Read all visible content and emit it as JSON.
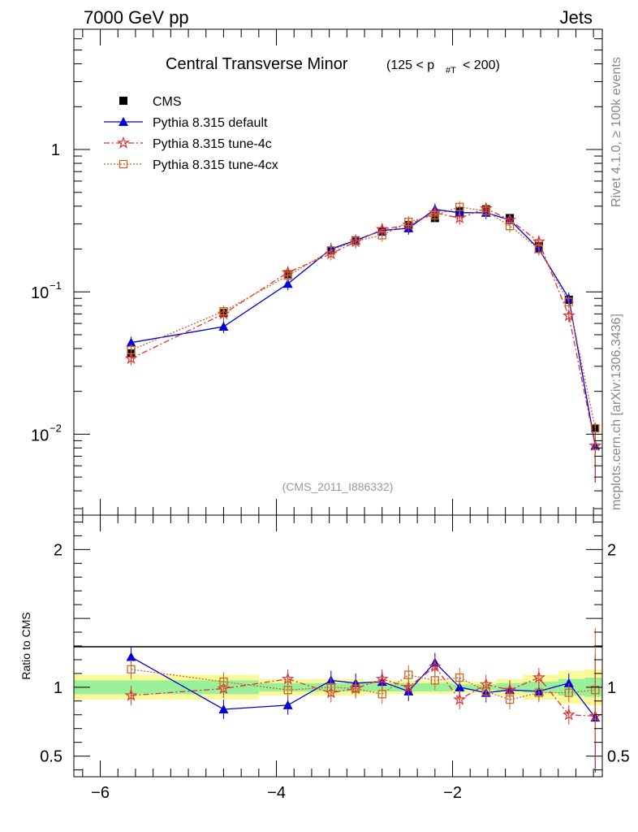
{
  "header": {
    "left": "7000 GeV pp",
    "right": "Jets"
  },
  "side_labels": {
    "rivet": "Rivet 4.1.0, ≥ 100k events",
    "mcplots": "mcplots.cern.ch [arXiv:1306.3436]"
  },
  "colors": {
    "cms": "#000000",
    "default": "#0000dd",
    "tune4c": "#dd3333",
    "tune4cx": "#cc6622",
    "band_green": "#99f099",
    "band_yellow": "#f9f99a"
  },
  "chart_data": [
    {
      "type": "scatter",
      "title": "Central Transverse Minor",
      "title_sub": "(125 < p",
      "title_sub_index": "#T",
      "title_sub_end": " < 200)",
      "watermark": "(CMS_2011_I886332)",
      "xlim": [
        -6.3,
        -0.3
      ],
      "ylim_log": [
        0.0027,
        7
      ],
      "yscale": "log",
      "y_tick_labels": [
        {
          "value": 1,
          "base": "1",
          "exp": ""
        },
        {
          "value": 0.1,
          "base": "10",
          "exp": "−1"
        },
        {
          "value": 0.01,
          "base": "10",
          "exp": "−2"
        }
      ],
      "legend": [
        "CMS",
        "Pythia 8.315 default",
        "Pythia 8.315 tune-4c",
        "Pythia 8.315 tune-4cx"
      ],
      "x": [
        -5.65,
        -4.6,
        -3.87,
        -3.38,
        -3.1,
        -2.8,
        -2.5,
        -2.2,
        -1.92,
        -1.62,
        -1.35,
        -1.02,
        -0.68,
        -0.38
      ],
      "series": [
        {
          "name": "CMS",
          "values": [
            0.037,
            0.071,
            0.133,
            0.195,
            0.23,
            0.265,
            0.295,
            0.33,
            0.37,
            0.38,
            0.33,
            0.21,
            0.088,
            0.011
          ]
        },
        {
          "name": "Pythia 8.315 default",
          "values": [
            0.044,
            0.057,
            0.114,
            0.2,
            0.23,
            0.27,
            0.28,
            0.38,
            0.36,
            0.36,
            0.32,
            0.2,
            0.09,
            0.0083
          ]
        },
        {
          "name": "Pythia 8.315 tune-4c",
          "values": [
            0.034,
            0.07,
            0.137,
            0.185,
            0.225,
            0.275,
            0.295,
            0.36,
            0.33,
            0.385,
            0.32,
            0.225,
            0.068,
            0.0083
          ]
        },
        {
          "name": "Pythia 8.315 tune-4cx",
          "values": [
            0.039,
            0.073,
            0.13,
            0.195,
            0.228,
            0.25,
            0.31,
            0.345,
            0.395,
            0.37,
            0.29,
            0.2,
            0.085,
            0.011
          ]
        }
      ]
    },
    {
      "type": "line",
      "ylabel": "Ratio to CMS",
      "xlim": [
        -6.3,
        -0.3
      ],
      "ylim": [
        0.35,
        2.25
      ],
      "x_ticks": [
        -6,
        -4,
        -2
      ],
      "x_tick_labels": [
        "−6",
        "−4",
        "−2"
      ],
      "y_ticks": [
        0.5,
        1,
        2
      ],
      "y_tick_labels": [
        "0.5",
        "1",
        "2"
      ],
      "x": [
        -5.65,
        -4.6,
        -3.87,
        -3.38,
        -3.1,
        -2.8,
        -2.5,
        -2.2,
        -1.92,
        -1.62,
        -1.35,
        -1.02,
        -0.68,
        -0.38
      ],
      "series": [
        {
          "name": "Pythia 8.315 default",
          "values": [
            1.22,
            0.84,
            0.87,
            1.05,
            1.03,
            1.04,
            0.97,
            1.18,
            1.0,
            0.96,
            0.98,
            0.97,
            1.03,
            0.78
          ]
        },
        {
          "name": "Pythia 8.315 tune-4c",
          "values": [
            0.94,
            0.99,
            1.06,
            0.96,
            0.99,
            1.06,
            1.0,
            1.15,
            0.91,
            1.02,
            0.98,
            1.07,
            0.8,
            0.79
          ]
        },
        {
          "name": "Pythia 8.315 tune-4cx",
          "values": [
            1.13,
            1.04,
            0.98,
            1.0,
            0.99,
            0.95,
            1.09,
            1.05,
            1.07,
            0.97,
            0.91,
            0.96,
            0.96,
            0.98
          ]
        }
      ],
      "bands": {
        "x_edges": [
          -6.3,
          -5.2,
          -4.2,
          -3.5,
          -3.0,
          -2.0,
          -1.5,
          -1.2,
          -0.8,
          -0.5,
          -0.3
        ],
        "green_halfwidth": [
          0.05,
          0.05,
          0.03,
          0.03,
          0.03,
          0.02,
          0.03,
          0.04,
          0.06,
          0.07
        ],
        "yellow_halfwidth": [
          0.09,
          0.09,
          0.06,
          0.06,
          0.05,
          0.04,
          0.06,
          0.09,
          0.12,
          0.13
        ]
      }
    }
  ]
}
